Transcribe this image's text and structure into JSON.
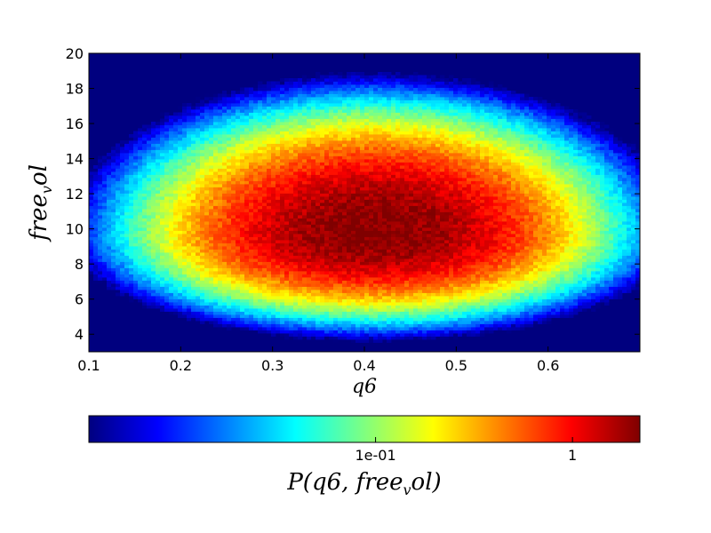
{
  "chart_data": {
    "type": "heatmap",
    "title": "",
    "xlabel": "q6",
    "ylabel": "free_vol",
    "xlim": [
      0.1,
      0.7
    ],
    "ylim": [
      3,
      20
    ],
    "xticks": [
      "0.1",
      "0.2",
      "0.3",
      "0.4",
      "0.5",
      "0.6"
    ],
    "xtick_values": [
      0.1,
      0.2,
      0.3,
      0.4,
      0.5,
      0.6
    ],
    "yticks": [
      "4",
      "6",
      "8",
      "10",
      "12",
      "14",
      "16",
      "18",
      "20"
    ],
    "ytick_values": [
      4,
      6,
      8,
      10,
      12,
      14,
      16,
      18,
      20
    ],
    "colormap": "jet",
    "color_scale": "log",
    "colorbar": {
      "label": "P(q6,free_vol)",
      "ticks": [
        "1e-01",
        "1"
      ],
      "tick_values": [
        0.1,
        1
      ],
      "range": [
        0.0035,
        2.2
      ],
      "orientation": "horizontal",
      "placement": "bottom"
    },
    "distribution": {
      "peak": {
        "q6": 0.41,
        "free_vol": 9.8,
        "density": 2.2
      },
      "spread_q6": 0.105,
      "spread_free_vol": 2.4,
      "support_q6": [
        0.17,
        0.66
      ],
      "support_free_vol": [
        6.0,
        18.0
      ]
    }
  },
  "colors": {
    "background": "#ffffff",
    "jet_low": "#00007f",
    "jet_high": "#7f0000"
  }
}
